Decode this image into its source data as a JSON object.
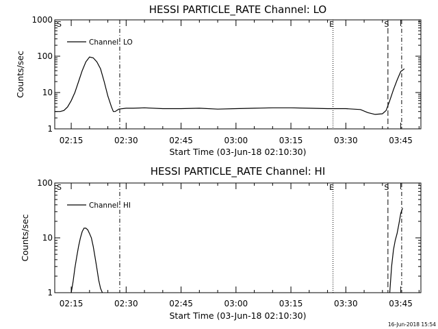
{
  "chart_data": [
    {
      "type": "line",
      "title": "HESSI PARTICLE_RATE Channel: LO",
      "xlabel": "Start Time (03-Jun-18 02:10:30)",
      "ylabel": "Counts/sec",
      "y_scale": "log",
      "ylim": [
        1,
        1000
      ],
      "xlim": [
        "02:10:30",
        "03:50:30"
      ],
      "x_ticks": [
        "02:15",
        "02:30",
        "02:45",
        "03:00",
        "03:15",
        "03:30",
        "03:45"
      ],
      "y_ticks": [
        "1",
        "10",
        "100",
        "1000"
      ],
      "legend": "top-left",
      "grid": false,
      "series": [
        {
          "name": "Channel: LO",
          "x": [
            "02:10:30",
            "02:12:00",
            "02:13:00",
            "02:14:00",
            "02:15:00",
            "02:16:00",
            "02:17:00",
            "02:18:00",
            "02:19:00",
            "02:20:00",
            "02:21:00",
            "02:22:00",
            "02:23:00",
            "02:24:00",
            "02:25:00",
            "02:26:00",
            "02:26:30",
            "02:27:00",
            "02:28:00",
            "02:30:00",
            "02:32:00",
            "02:35:00",
            "02:40:00",
            "02:45:00",
            "02:50:00",
            "02:55:00",
            "03:00:00",
            "03:05:00",
            "03:10:00",
            "03:15:00",
            "03:20:00",
            "03:25:00",
            "03:30:00",
            "03:34:00",
            "03:36:00",
            "03:38:00",
            "03:40:00",
            "03:41:00",
            "03:42:00",
            "03:43:00",
            "03:44:00",
            "03:45:00",
            "03:46:00"
          ],
          "values": [
            3,
            3,
            3.2,
            4,
            6,
            10,
            20,
            40,
            70,
            95,
            90,
            70,
            45,
            20,
            8,
            4,
            3,
            3,
            3.5,
            3.7,
            3.7,
            3.8,
            3.6,
            3.6,
            3.7,
            3.5,
            3.6,
            3.7,
            3.8,
            3.8,
            3.7,
            3.6,
            3.6,
            3.4,
            2.8,
            2.5,
            2.6,
            3.2,
            6,
            12,
            22,
            38,
            45
          ]
        }
      ],
      "markers": [
        {
          "label": "S",
          "time": "02:10:30",
          "style": "solid"
        },
        {
          "label": "",
          "time": "02:28:15",
          "style": "dash-dot"
        },
        {
          "label": "E",
          "time": "03:26:30",
          "style": "dotted"
        },
        {
          "label": "S",
          "time": "03:41:30",
          "style": "dashed"
        },
        {
          "label": "",
          "time": "03:45:15",
          "style": "dash-dot"
        }
      ]
    },
    {
      "type": "line",
      "title": "HESSI PARTICLE_RATE Channel: HI",
      "xlabel": "Start Time (03-Jun-18 02:10:30)",
      "ylabel": "Counts/sec",
      "y_scale": "log",
      "ylim": [
        1,
        100
      ],
      "xlim": [
        "02:10:30",
        "03:50:30"
      ],
      "x_ticks": [
        "02:15",
        "02:30",
        "02:45",
        "03:00",
        "03:15",
        "03:30",
        "03:45"
      ],
      "y_ticks": [
        "1",
        "10",
        "100"
      ],
      "legend": "top-left",
      "grid": false,
      "series": [
        {
          "name": "Channel: HI",
          "segments": [
            {
              "x": [
                "02:15:00",
                "02:15:30",
                "02:16:00",
                "02:16:30",
                "02:17:00",
                "02:17:30",
                "02:18:00",
                "02:18:30",
                "02:19:00",
                "02:19:30",
                "02:20:00",
                "02:20:30",
                "02:21:00",
                "02:21:30",
                "02:22:00",
                "02:22:30",
                "02:23:00",
                "02:23:30"
              ],
              "values": [
                1,
                1.6,
                2.8,
                4.5,
                7,
                10,
                13,
                15,
                15,
                14,
                12,
                10,
                7,
                4.5,
                2.8,
                1.7,
                1.2,
                1
              ]
            },
            {
              "x": [
                "03:42:00",
                "03:42:30",
                "03:43:00",
                "03:43:30",
                "03:44:00",
                "03:44:30",
                "03:45:00",
                "03:45:30"
              ],
              "values": [
                1,
                3,
                6,
                9,
                12,
                18,
                28,
                35
              ]
            }
          ]
        }
      ],
      "markers": [
        {
          "label": "S",
          "time": "02:10:30",
          "style": "solid"
        },
        {
          "label": "",
          "time": "02:28:15",
          "style": "dash-dot"
        },
        {
          "label": "E",
          "time": "03:26:30",
          "style": "dotted"
        },
        {
          "label": "S",
          "time": "03:41:30",
          "style": "dashed"
        },
        {
          "label": "",
          "time": "03:45:15",
          "style": "dash-dot"
        }
      ]
    }
  ],
  "footer": {
    "generated": "16-Jun-2018 15:54"
  }
}
